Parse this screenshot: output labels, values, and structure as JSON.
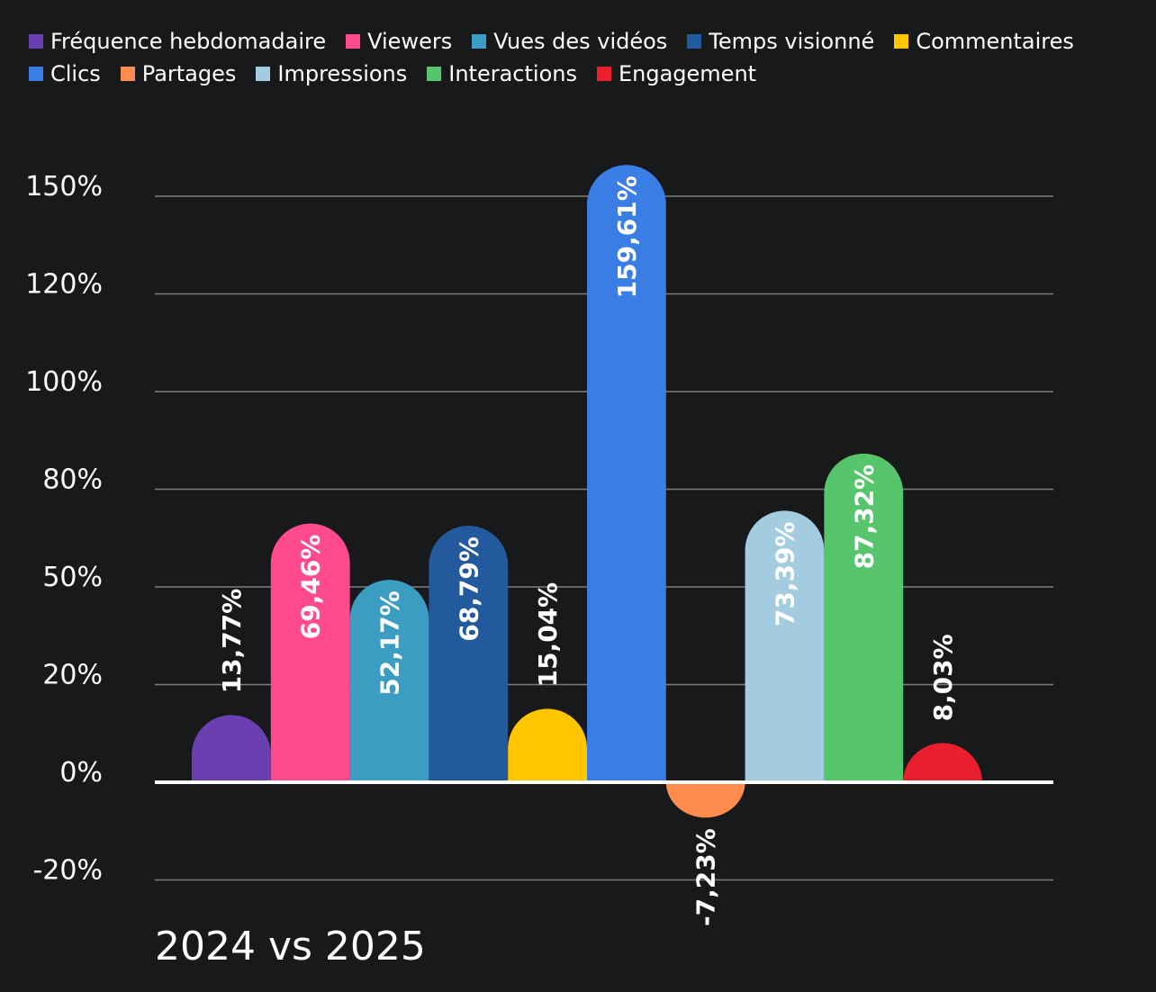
{
  "chart_data": {
    "type": "bar",
    "categories": [
      "Fréquence hebdomadaire",
      "Viewers",
      "Vues des vidéos",
      "Temps visionné",
      "Commentaires",
      "Clics",
      "Partages",
      "Impressions",
      "Interactions",
      "Engagement"
    ],
    "values": [
      13.77,
      69.46,
      52.17,
      68.79,
      15.04,
      159.61,
      -7.23,
      73.39,
      87.32,
      8.03
    ],
    "data_labels": [
      "13,77%",
      "69,46%",
      "52,17%",
      "68,79%",
      "15,04%",
      "159,61%",
      "-7,23%",
      "73,39%",
      "87,32%",
      "8,03%"
    ],
    "colors": [
      "#6a3fb0",
      "#ff4a8d",
      "#3c9dc2",
      "#235a9e",
      "#ffc600",
      "#3a7ee5",
      "#ff8c4f",
      "#a3cce0",
      "#57c56c",
      "#ea1f2e"
    ],
    "y_tick_labels": [
      "150%",
      "120%",
      "100%",
      "80%",
      "50%",
      "20%",
      "0%",
      "-20%"
    ],
    "ylim": [
      -20,
      150
    ],
    "grid": true,
    "legend_position": "top",
    "xlabel": "2024 vs 2025",
    "ylabel": ""
  }
}
